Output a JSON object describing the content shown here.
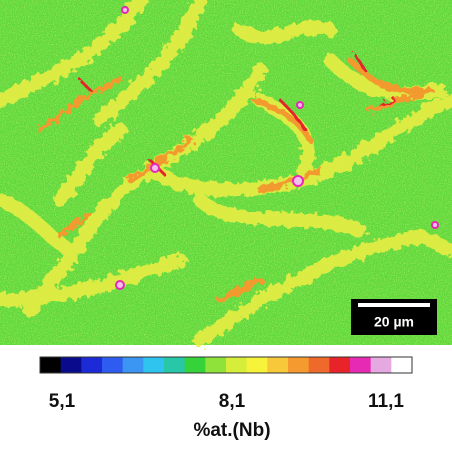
{
  "map": {
    "scale_bar": {
      "label": "20 µm"
    }
  },
  "colorbar": {
    "colors": [
      "#000000",
      "#0a0a8c",
      "#1c2ad8",
      "#2f5cf0",
      "#3b95f2",
      "#2fc4f0",
      "#27c7a8",
      "#35d23a",
      "#8fe23a",
      "#d6ee3a",
      "#f7f23a",
      "#f7c83a",
      "#f59a2e",
      "#ef6a2a",
      "#e8232a",
      "#e62ab4",
      "#e6a8e0",
      "#ffffff"
    ],
    "labels": [
      "5,1",
      "8,1",
      "11,1"
    ],
    "title": "%at.(Nb)"
  }
}
